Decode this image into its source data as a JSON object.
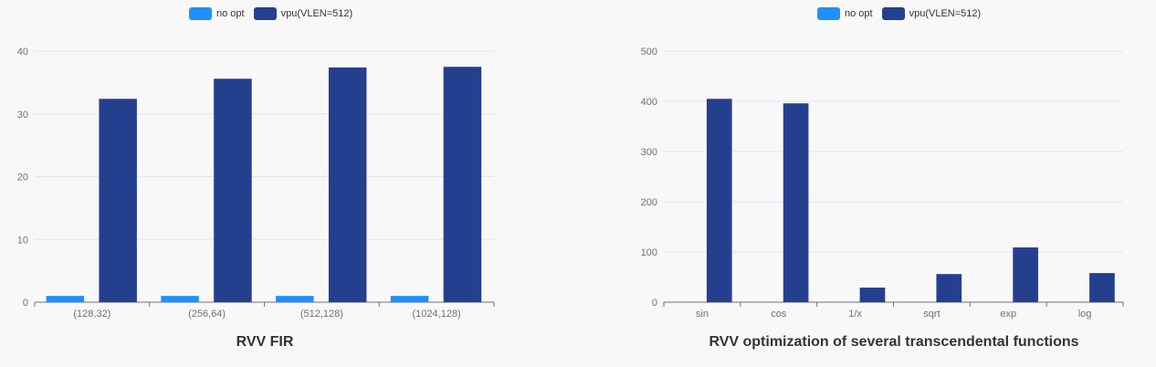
{
  "colors": {
    "no_opt": "#1e90ff",
    "vpu": "#253f8f"
  },
  "chart_data": [
    {
      "type": "bar",
      "title": "RVV FIR",
      "legend": [
        "no opt",
        "vpu(VLEN=512)"
      ],
      "legend_position": "top-center",
      "categories": [
        "(128,32)",
        "(256,64)",
        "(512,128)",
        "(1024,128)"
      ],
      "series": [
        {
          "name": "no opt",
          "values": [
            1,
            1,
            1,
            1
          ]
        },
        {
          "name": "vpu(VLEN=512)",
          "values": [
            32.4,
            35.6,
            37.4,
            37.5
          ]
        }
      ],
      "ylim": [
        0,
        40
      ],
      "yticks": [
        "0",
        "10",
        "20",
        "30",
        "40"
      ],
      "grid": true
    },
    {
      "type": "bar",
      "title": "RVV optimization of several transcendental functions",
      "legend": [
        "no opt",
        "vpu(VLEN=512)"
      ],
      "legend_position": "top-center",
      "categories": [
        "sin",
        "cos",
        "1/x",
        "sqrt",
        "exp",
        "log"
      ],
      "series": [
        {
          "name": "no opt",
          "values": [
            1,
            1,
            1,
            1,
            1,
            1
          ]
        },
        {
          "name": "vpu(VLEN=512)",
          "values": [
            405,
            396,
            29,
            56,
            109,
            58
          ]
        }
      ],
      "ylim": [
        0,
        500
      ],
      "yticks": [
        "0",
        "100",
        "200",
        "300",
        "400",
        "500"
      ],
      "grid": true
    }
  ]
}
